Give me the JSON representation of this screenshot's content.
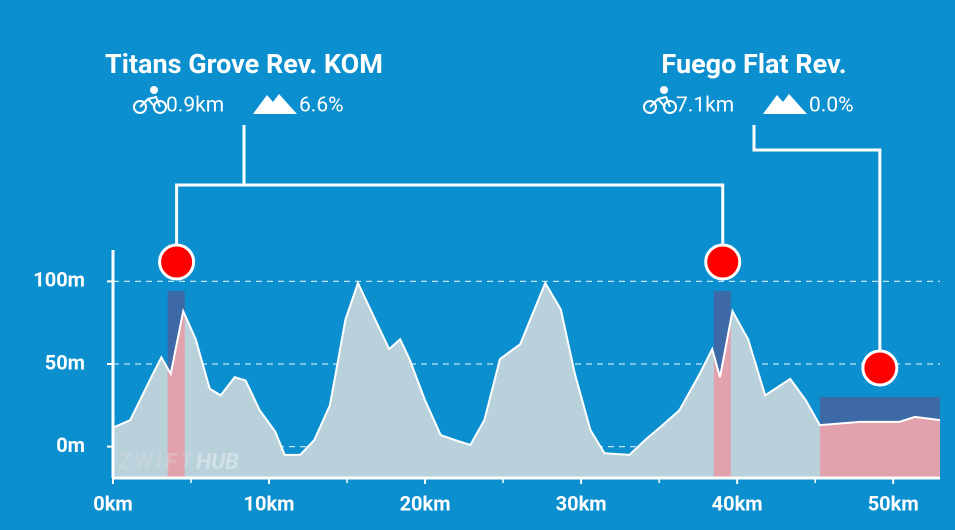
{
  "chart_data": {
    "type": "area",
    "x": [
      0,
      1.1,
      2.4,
      3.1,
      3.7,
      4.5,
      5.3,
      6.2,
      6.9,
      7.8,
      8.5,
      9.4,
      10.4,
      11,
      12,
      12.9,
      13.9,
      14.9,
      15.7,
      16.8,
      17.7,
      18.4,
      19,
      20,
      21,
      21.9,
      22.9,
      23.8,
      24.8,
      26.1,
      27.7,
      28.7,
      29.6,
      30.6,
      31.5,
      33.1,
      34.1,
      35.1,
      36.3,
      37.6,
      38.4,
      38.9,
      39.7,
      40.7,
      41.8,
      43.4,
      44.4,
      45.3,
      47.9,
      50.4,
      51.4,
      53
    ],
    "values": [
      11.5,
      16,
      41,
      54,
      44,
      82,
      65,
      35,
      31,
      42,
      40,
      22,
      9,
      -5,
      -5,
      4,
      25,
      77,
      99,
      77,
      59,
      65,
      53,
      28,
      7,
      4,
      1,
      16,
      53,
      62,
      99,
      83,
      44,
      10,
      -4,
      -5,
      4,
      12,
      22,
      44,
      59,
      42,
      82,
      65,
      31,
      41,
      28,
      13,
      15,
      15,
      18,
      16
    ],
    "color": "#b9d1db",
    "xlim": [
      0,
      53
    ],
    "ylim": [
      -19,
      119
    ],
    "xticks": [
      {
        "value": 0,
        "label": "0km"
      },
      {
        "value": 10,
        "label": "10km"
      },
      {
        "value": 20,
        "label": "20km"
      },
      {
        "value": 30,
        "label": "30km"
      },
      {
        "value": 40,
        "label": "40km"
      },
      {
        "value": 50,
        "label": "50km"
      }
    ],
    "yticks": [
      {
        "value": 0,
        "label": "0m"
      },
      {
        "value": 50,
        "label": "50m"
      },
      {
        "value": 100,
        "label": "100m"
      }
    ],
    "grid": true,
    "segments": [
      {
        "name": "Titans Grove Rev. KOM",
        "distance": "0.9km",
        "grade": "6.6%",
        "ranges": [
          [
            3.5,
            4.6
          ],
          [
            38.5,
            39.6
          ]
        ]
      },
      {
        "name": "Fuego Flat Rev.",
        "distance": "7.1km",
        "grade": "0.0%",
        "ranges": [
          [
            45.3,
            53
          ]
        ]
      }
    ],
    "watermark": [
      "ZWIFT",
      "HUB"
    ]
  }
}
